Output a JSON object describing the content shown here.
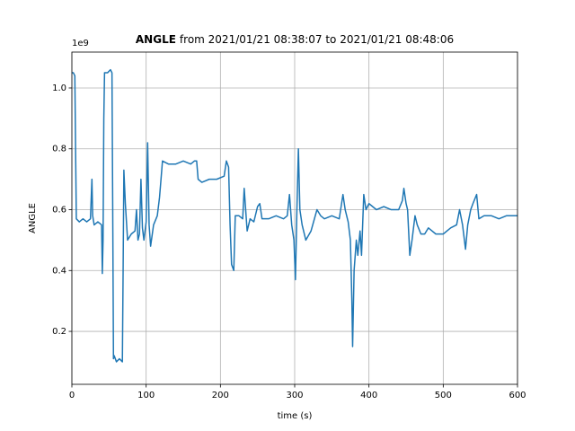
{
  "chart_data": {
    "type": "line",
    "title": {
      "bold": "ANGLE",
      "rest": "from 2021/01/21 08:38:07 to 2021/01/21 08:48:06"
    },
    "y_offset_label": "1e9",
    "x_label": "time (s)",
    "y_label": "ANGLE",
    "xlim": [
      0,
      600
    ],
    "xticks": [
      0,
      100,
      200,
      300,
      400,
      500,
      600
    ],
    "ylim": [
      0.026,
      1.118
    ],
    "yticks": [
      0.2,
      0.4,
      0.6,
      0.8,
      {
        "value": 1,
        "label": "1.0"
      }
    ],
    "grid": true,
    "series": [
      {
        "name": "ANGLE",
        "color": "#1f77b4",
        "x": [
          0,
          2,
          4,
          5,
          6,
          10,
          15,
          20,
          25,
          27,
          28,
          30,
          35,
          40,
          41,
          42,
          43,
          44,
          48,
          52,
          54,
          55,
          56,
          57,
          60,
          64,
          68,
          69,
          70,
          72,
          75,
          80,
          85,
          87,
          89,
          91,
          93,
          95,
          97,
          100,
          102,
          104,
          106,
          110,
          115,
          118,
          120,
          122,
          130,
          140,
          150,
          160,
          165,
          168,
          170,
          175,
          185,
          195,
          205,
          208,
          211,
          213,
          215,
          218,
          220,
          225,
          230,
          232,
          234,
          236,
          240,
          245,
          250,
          253,
          256,
          265,
          275,
          285,
          290,
          293,
          296,
          299,
          301,
          303,
          305,
          307,
          310,
          315,
          322,
          330,
          335,
          340,
          350,
          360,
          365,
          368,
          372,
          375,
          377,
          378,
          380,
          383,
          385,
          388,
          390,
          393,
          396,
          400,
          410,
          420,
          430,
          440,
          445,
          447,
          450,
          452,
          455,
          458,
          462,
          465,
          470,
          475,
          480,
          490,
          500,
          510,
          518,
          522,
          526,
          530,
          533,
          537,
          540,
          545,
          548,
          555,
          565,
          575,
          585,
          595,
          600
        ],
        "values": [
          1.05,
          1.05,
          1.04,
          0.8,
          0.57,
          0.56,
          0.57,
          0.56,
          0.57,
          0.7,
          0.58,
          0.55,
          0.56,
          0.55,
          0.39,
          0.5,
          0.9,
          1.05,
          1.05,
          1.06,
          1.05,
          0.6,
          0.11,
          0.12,
          0.1,
          0.11,
          0.1,
          0.4,
          0.73,
          0.62,
          0.5,
          0.52,
          0.53,
          0.6,
          0.5,
          0.52,
          0.7,
          0.54,
          0.5,
          0.56,
          0.82,
          0.55,
          0.48,
          0.55,
          0.58,
          0.64,
          0.7,
          0.76,
          0.75,
          0.75,
          0.76,
          0.75,
          0.76,
          0.76,
          0.7,
          0.69,
          0.7,
          0.7,
          0.71,
          0.76,
          0.74,
          0.55,
          0.42,
          0.4,
          0.58,
          0.58,
          0.57,
          0.67,
          0.6,
          0.53,
          0.57,
          0.56,
          0.61,
          0.62,
          0.57,
          0.57,
          0.58,
          0.57,
          0.58,
          0.65,
          0.55,
          0.5,
          0.37,
          0.6,
          0.8,
          0.6,
          0.55,
          0.5,
          0.53,
          0.6,
          0.58,
          0.57,
          0.58,
          0.57,
          0.65,
          0.6,
          0.56,
          0.5,
          0.3,
          0.15,
          0.4,
          0.5,
          0.45,
          0.53,
          0.45,
          0.65,
          0.6,
          0.62,
          0.6,
          0.61,
          0.6,
          0.6,
          0.63,
          0.67,
          0.62,
          0.6,
          0.45,
          0.5,
          0.58,
          0.55,
          0.52,
          0.52,
          0.54,
          0.52,
          0.52,
          0.54,
          0.55,
          0.6,
          0.55,
          0.47,
          0.55,
          0.6,
          0.62,
          0.65,
          0.57,
          0.58,
          0.58,
          0.57,
          0.58,
          0.58,
          0.58
        ]
      }
    ]
  }
}
